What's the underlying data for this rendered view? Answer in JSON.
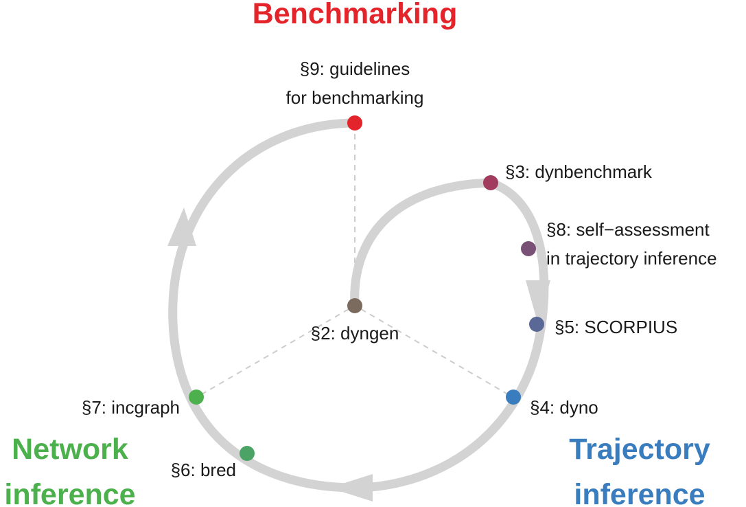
{
  "colors": {
    "track": "#d3d3d3",
    "connector": "#cccccc",
    "benchmarking": "#e3242b",
    "network": "#4cb04c",
    "trajectory": "#3a7dbf"
  },
  "sections": {
    "benchmarking": {
      "line1": "Benchmarking"
    },
    "network": {
      "line1": "Network",
      "line2": "inference"
    },
    "trajectory": {
      "line1": "Trajectory",
      "line2": "inference"
    }
  },
  "nodes": {
    "s9": {
      "line1": "§9: guidelines",
      "line2": "for benchmarking",
      "color": "#e3242b"
    },
    "s3": {
      "label": "§3: dynbenchmark",
      "color": "#a13c5e"
    },
    "s8": {
      "line1": "§8: self−assessment",
      "line2": "in trajectory inference",
      "color": "#7a5176"
    },
    "s5": {
      "label": "§5: SCORPIUS",
      "color": "#5a6896"
    },
    "s4": {
      "label": "§4: dyno",
      "color": "#3a7dbf"
    },
    "s2": {
      "label": "§2: dyngen",
      "color": "#7b6b5f"
    },
    "s7": {
      "label": "§7: incgraph",
      "color": "#4cb04c"
    },
    "s6": {
      "label": "§6: bred",
      "color": "#4ba365"
    }
  }
}
